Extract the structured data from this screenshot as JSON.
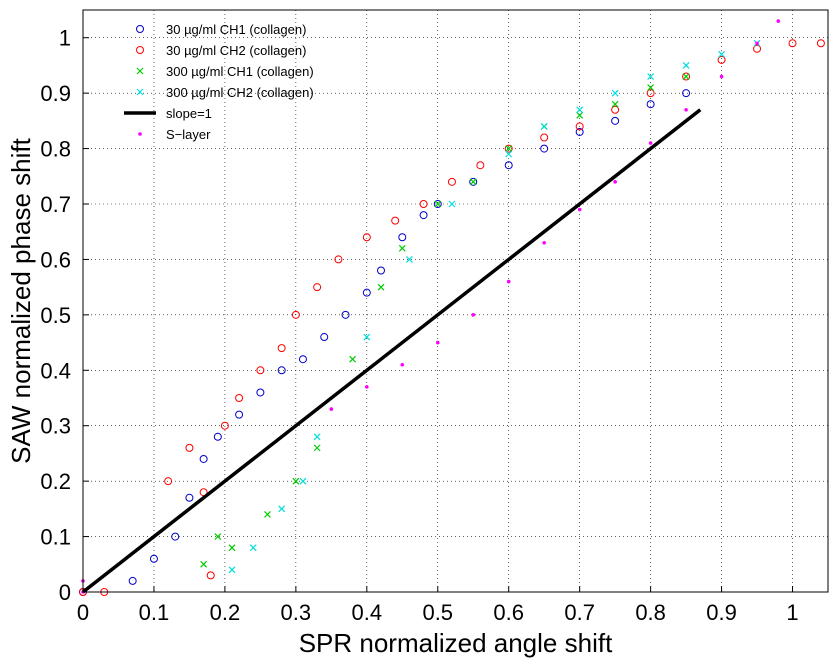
{
  "chart_data": {
    "type": "scatter",
    "xlabel": "SPR normalized angle shift",
    "ylabel": "SAW normalized phase shift",
    "xlim": [
      0,
      1.05
    ],
    "ylim": [
      0,
      1.05
    ],
    "grid": true,
    "legend_position": "top-left",
    "x_ticks": [
      0,
      0.1,
      0.2,
      0.3,
      0.4,
      0.5,
      0.6,
      0.7,
      0.8,
      0.9,
      1
    ],
    "y_ticks": [
      0,
      0.1,
      0.2,
      0.3,
      0.4,
      0.5,
      0.6,
      0.7,
      0.8,
      0.9,
      1
    ],
    "x_tick_labels": [
      "0",
      "0.1",
      "0.2",
      "0.3",
      "0.4",
      "0.5",
      "0.6",
      "0.7",
      "0.8",
      "0.9",
      "1"
    ],
    "y_tick_labels": [
      "0",
      "0.1",
      "0.2",
      "0.3",
      "0.4",
      "0.5",
      "0.6",
      "0.7",
      "0.8",
      "0.9",
      "1"
    ],
    "series": [
      {
        "name": "30 µg/ml CH1 (collagen)",
        "marker": "circle",
        "color": "#0000cc",
        "points": [
          [
            0.0,
            0.0
          ],
          [
            0.07,
            0.02
          ],
          [
            0.1,
            0.06
          ],
          [
            0.13,
            0.1
          ],
          [
            0.15,
            0.17
          ],
          [
            0.17,
            0.24
          ],
          [
            0.19,
            0.28
          ],
          [
            0.22,
            0.32
          ],
          [
            0.25,
            0.36
          ],
          [
            0.28,
            0.4
          ],
          [
            0.31,
            0.42
          ],
          [
            0.34,
            0.46
          ],
          [
            0.37,
            0.5
          ],
          [
            0.4,
            0.54
          ],
          [
            0.42,
            0.58
          ],
          [
            0.45,
            0.64
          ],
          [
            0.48,
            0.68
          ],
          [
            0.5,
            0.7
          ],
          [
            0.55,
            0.74
          ],
          [
            0.6,
            0.77
          ],
          [
            0.65,
            0.8
          ],
          [
            0.7,
            0.83
          ],
          [
            0.75,
            0.85
          ],
          [
            0.8,
            0.88
          ],
          [
            0.85,
            0.9
          ]
        ]
      },
      {
        "name": "30 µg/ml CH2 (collagen)",
        "marker": "circle",
        "color": "#ff0000",
        "points": [
          [
            0.0,
            0.0
          ],
          [
            0.03,
            0.0
          ],
          [
            0.12,
            0.2
          ],
          [
            0.15,
            0.26
          ],
          [
            0.17,
            0.18
          ],
          [
            0.18,
            0.03
          ],
          [
            0.2,
            0.3
          ],
          [
            0.22,
            0.35
          ],
          [
            0.25,
            0.4
          ],
          [
            0.28,
            0.44
          ],
          [
            0.3,
            0.5
          ],
          [
            0.33,
            0.55
          ],
          [
            0.36,
            0.6
          ],
          [
            0.4,
            0.64
          ],
          [
            0.44,
            0.67
          ],
          [
            0.48,
            0.7
          ],
          [
            0.52,
            0.74
          ],
          [
            0.56,
            0.77
          ],
          [
            0.6,
            0.8
          ],
          [
            0.65,
            0.82
          ],
          [
            0.7,
            0.84
          ],
          [
            0.75,
            0.87
          ],
          [
            0.8,
            0.9
          ],
          [
            0.85,
            0.93
          ],
          [
            0.9,
            0.96
          ],
          [
            0.95,
            0.98
          ],
          [
            1.0,
            0.99
          ],
          [
            1.04,
            0.99
          ]
        ]
      },
      {
        "name": "300 µg/ml CH1 (collagen)",
        "marker": "x",
        "color": "#00cc00",
        "points": [
          [
            0.17,
            0.05
          ],
          [
            0.19,
            0.1
          ],
          [
            0.21,
            0.08
          ],
          [
            0.26,
            0.14
          ],
          [
            0.3,
            0.2
          ],
          [
            0.33,
            0.26
          ],
          [
            0.38,
            0.42
          ],
          [
            0.42,
            0.55
          ],
          [
            0.45,
            0.62
          ],
          [
            0.5,
            0.7
          ],
          [
            0.55,
            0.74
          ],
          [
            0.6,
            0.8
          ],
          [
            0.65,
            0.84
          ],
          [
            0.7,
            0.86
          ],
          [
            0.75,
            0.88
          ],
          [
            0.8,
            0.91
          ],
          [
            0.85,
            0.93
          ]
        ]
      },
      {
        "name": "300 µg/ml CH2 (collagen)",
        "marker": "x",
        "color": "#00dddd",
        "points": [
          [
            0.21,
            0.04
          ],
          [
            0.24,
            0.08
          ],
          [
            0.28,
            0.15
          ],
          [
            0.31,
            0.2
          ],
          [
            0.33,
            0.28
          ],
          [
            0.4,
            0.46
          ],
          [
            0.46,
            0.6
          ],
          [
            0.52,
            0.7
          ],
          [
            0.6,
            0.79
          ],
          [
            0.65,
            0.84
          ],
          [
            0.7,
            0.87
          ],
          [
            0.75,
            0.9
          ],
          [
            0.8,
            0.93
          ],
          [
            0.85,
            0.95
          ],
          [
            0.9,
            0.97
          ],
          [
            0.95,
            0.99
          ]
        ]
      },
      {
        "name": "slope=1",
        "marker": "line",
        "color": "#000000",
        "points": [
          [
            0,
            0
          ],
          [
            0.87,
            0.87
          ]
        ]
      },
      {
        "name": "S−layer",
        "marker": "dot",
        "color": "#ff00ff",
        "points": [
          [
            0.0,
            0.02
          ],
          [
            0.0,
            0.0
          ],
          [
            0.3,
            0.3
          ],
          [
            0.35,
            0.33
          ],
          [
            0.4,
            0.37
          ],
          [
            0.45,
            0.41
          ],
          [
            0.5,
            0.45
          ],
          [
            0.55,
            0.5
          ],
          [
            0.6,
            0.56
          ],
          [
            0.65,
            0.63
          ],
          [
            0.7,
            0.69
          ],
          [
            0.75,
            0.74
          ],
          [
            0.8,
            0.81
          ],
          [
            0.85,
            0.87
          ],
          [
            0.9,
            0.93
          ],
          [
            0.95,
            0.99
          ],
          [
            0.98,
            1.03
          ]
        ]
      }
    ]
  }
}
